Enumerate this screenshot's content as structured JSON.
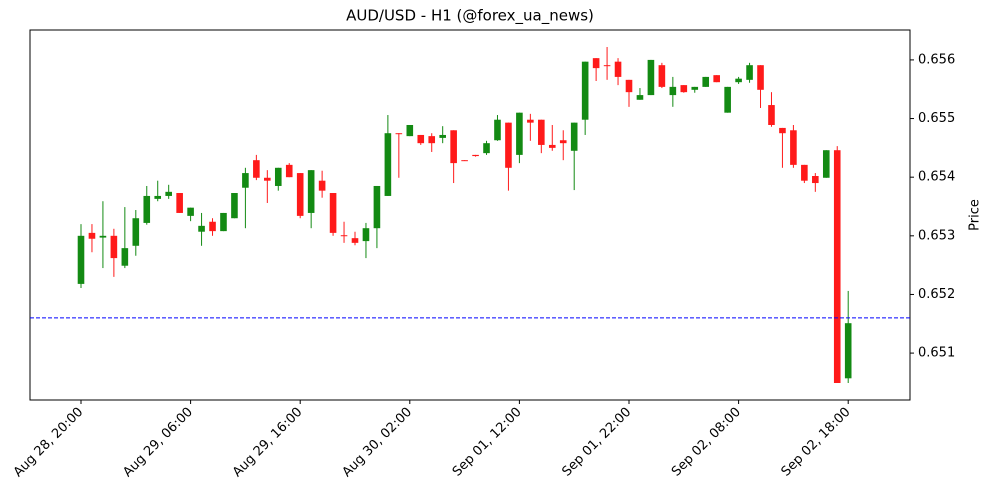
{
  "chart_data": {
    "type": "candlestick",
    "title": "AUD/USD - H1 (@forex_ua_news)",
    "y_label": "Price",
    "categories": [
      "Aug 28, 20:00",
      null,
      null,
      null,
      null,
      null,
      null,
      null,
      null,
      null,
      "Aug 29, 06:00",
      null,
      null,
      null,
      null,
      null,
      null,
      null,
      null,
      null,
      "Aug 29, 16:00",
      null,
      null,
      null,
      null,
      null,
      null,
      null,
      null,
      null,
      "Aug 30, 02:00",
      null,
      null,
      null,
      null,
      null,
      null,
      null,
      null,
      null,
      "Sep 01, 12:00",
      null,
      null,
      null,
      null,
      null,
      null,
      null,
      null,
      null,
      "Sep 01, 22:00",
      null,
      null,
      null,
      null,
      null,
      null,
      null,
      null,
      null,
      "Sep 02, 08:00",
      null,
      null,
      null,
      null,
      null,
      null,
      null,
      null,
      null,
      "Sep 02, 18:00"
    ],
    "open": [
      0.65218,
      0.65305,
      0.65297,
      0.653,
      0.65249,
      0.65283,
      0.65322,
      0.65363,
      0.65368,
      0.65373,
      0.65334,
      0.65307,
      0.65324,
      0.65308,
      0.6533,
      0.65382,
      0.65429,
      0.65399,
      0.65385,
      0.65421,
      0.65407,
      0.65339,
      0.65394,
      0.65373,
      0.65301,
      0.65296,
      0.65291,
      0.65313,
      0.65368,
      0.65475,
      0.6547,
      0.65472,
      0.6547,
      0.65467,
      0.6548,
      0.65429,
      0.65438,
      0.65441,
      0.65463,
      0.65493,
      0.65438,
      0.65498,
      0.65498,
      0.65455,
      0.65463,
      0.65445,
      0.65498,
      0.65603,
      0.65591,
      0.65597,
      0.65566,
      0.65532,
      0.6554,
      0.65591,
      0.6554,
      0.65557,
      0.65549,
      0.65554,
      0.65574,
      0.6551,
      0.65562,
      0.65566,
      0.65591,
      0.65523,
      0.65484,
      0.6548,
      0.65421,
      0.65402,
      0.65399,
      0.65446,
      0.65057
    ],
    "high": [
      0.6532,
      0.6532,
      0.65359,
      0.65312,
      0.65349,
      0.65344,
      0.65385,
      0.65394,
      0.65387,
      0.65373,
      0.65348,
      0.65339,
      0.6533,
      0.65339,
      0.65373,
      0.65416,
      0.65438,
      0.65412,
      0.65416,
      0.65424,
      0.65407,
      0.65412,
      0.65411,
      0.65373,
      0.65324,
      0.65307,
      0.65322,
      0.65385,
      0.65506,
      0.65475,
      0.65489,
      0.65472,
      0.65475,
      0.65487,
      0.6548,
      0.65429,
      0.65438,
      0.65462,
      0.65506,
      0.65493,
      0.6551,
      0.65508,
      0.65498,
      0.65489,
      0.6548,
      0.65493,
      0.65597,
      0.65603,
      0.65622,
      0.65603,
      0.65566,
      0.65552,
      0.656,
      0.65595,
      0.65571,
      0.65557,
      0.65554,
      0.65571,
      0.65574,
      0.65554,
      0.65571,
      0.65595,
      0.65591,
      0.65545,
      0.65484,
      0.65489,
      0.65421,
      0.65407,
      0.65446,
      0.65453,
      0.65206
    ],
    "low": [
      0.65211,
      0.65272,
      0.65245,
      0.6523,
      0.65245,
      0.65266,
      0.65319,
      0.65359,
      0.65363,
      0.65339,
      0.65325,
      0.65283,
      0.653,
      0.65308,
      0.6533,
      0.65313,
      0.65395,
      0.65356,
      0.65377,
      0.654,
      0.6533,
      0.65313,
      0.65365,
      0.653,
      0.65288,
      0.65284,
      0.65262,
      0.65279,
      0.65368,
      0.65399,
      0.6547,
      0.65455,
      0.65443,
      0.65458,
      0.6539,
      0.65428,
      0.65435,
      0.65438,
      0.65462,
      0.65377,
      0.65424,
      0.65462,
      0.65441,
      0.65445,
      0.65429,
      0.65378,
      0.65472,
      0.65564,
      0.65566,
      0.65557,
      0.6552,
      0.65532,
      0.6554,
      0.65552,
      0.6552,
      0.65544,
      0.65544,
      0.65554,
      0.65562,
      0.6551,
      0.65559,
      0.65561,
      0.65518,
      0.65486,
      0.65416,
      0.65416,
      0.6539,
      0.65375,
      0.65399,
      0.65049,
      0.65049
    ],
    "close": [
      0.653,
      0.65295,
      0.653,
      0.65262,
      0.65279,
      0.6533,
      0.65368,
      0.65368,
      0.65375,
      0.65339,
      0.65348,
      0.65317,
      0.65308,
      0.65339,
      0.65373,
      0.65407,
      0.65399,
      0.65394,
      0.65416,
      0.654,
      0.65334,
      0.65412,
      0.65377,
      0.65305,
      0.653,
      0.65288,
      0.65313,
      0.65385,
      0.65475,
      0.65474,
      0.65489,
      0.65458,
      0.65458,
      0.65472,
      0.65424,
      0.65428,
      0.65436,
      0.65458,
      0.65498,
      0.65416,
      0.6551,
      0.65493,
      0.65455,
      0.6545,
      0.65458,
      0.65493,
      0.65597,
      0.65586,
      0.6559,
      0.65571,
      0.65545,
      0.6554,
      0.656,
      0.65554,
      0.65554,
      0.65545,
      0.65554,
      0.65571,
      0.65562,
      0.65554,
      0.65568,
      0.65591,
      0.65549,
      0.65489,
      0.65475,
      0.65421,
      0.65394,
      0.6539,
      0.65446,
      0.65049,
      0.65151
    ],
    "up_color": "#138a13",
    "down_color": "#ff1a1a",
    "hline": {
      "value": 0.6516,
      "color": "#0000ff"
    },
    "ylim": [
      0.6502,
      0.65651
    ],
    "yticks": [
      0.651,
      0.652,
      0.653,
      0.654,
      0.655,
      0.656
    ]
  }
}
